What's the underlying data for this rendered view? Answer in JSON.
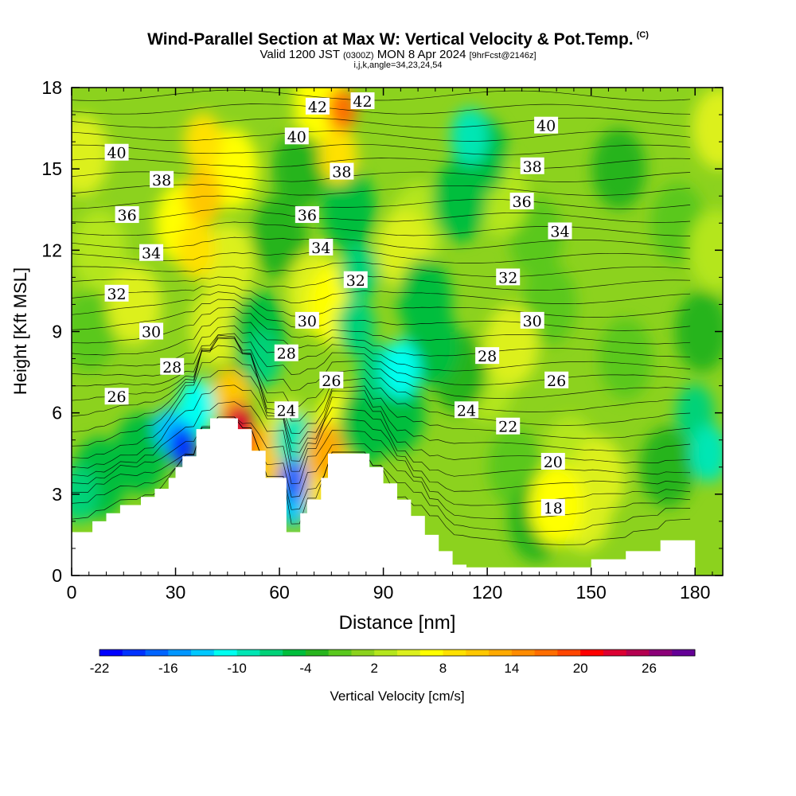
{
  "header": {
    "title": "Wind-Parallel Section at Max W: Vertical Velocity & Pot.Temp.",
    "copyright": "(C)",
    "valid_prefix": "Valid 1200 JST",
    "valid_utc": "(0300Z)",
    "valid_date": "MON 8 Apr 2024",
    "forecast": "[9hrFcst@2146z]",
    "indices": "i,j,k,angle=34,23,24,54"
  },
  "chart_data": {
    "type": "heatmap",
    "xlabel": "Distance [nm]",
    "ylabel": "Height [Kft MSL]",
    "xlim": [
      0,
      188
    ],
    "ylim": [
      0,
      18
    ],
    "xticks": [
      0,
      30,
      60,
      90,
      120,
      150,
      180
    ],
    "yticks": [
      0,
      3,
      6,
      9,
      12,
      15,
      18
    ],
    "colorbar": {
      "label": "Vertical Velocity [cm/s]",
      "min": -22,
      "max": 28,
      "step": 2,
      "tick_labels": [
        "-22",
        "-16",
        "-10",
        "-4",
        "2",
        "8",
        "14",
        "20",
        "26"
      ],
      "colors": [
        "#0000ff",
        "#0032ff",
        "#0064ff",
        "#0096ff",
        "#00c8ff",
        "#00fff0",
        "#00e6b4",
        "#00d278",
        "#00be3c",
        "#28b41e",
        "#5ac81e",
        "#8cd21e",
        "#b4e61e",
        "#dcf01e",
        "#ffff00",
        "#ffe100",
        "#ffc800",
        "#ffaa00",
        "#ff8c00",
        "#ff6e00",
        "#ff4600",
        "#ff0000",
        "#dc0032",
        "#b40050",
        "#8c0078",
        "#640096"
      ]
    },
    "terrain": {
      "x": [
        0,
        0,
        6,
        6,
        10,
        10,
        14,
        14,
        20,
        20,
        24,
        24,
        28,
        28,
        30,
        30,
        32,
        32,
        36,
        36,
        40,
        40,
        48,
        48,
        52,
        52,
        56,
        56,
        62,
        62,
        66,
        66,
        68,
        68,
        72,
        72,
        74,
        74,
        78,
        78,
        86,
        86,
        90,
        90,
        94,
        94,
        98,
        98,
        102,
        102,
        106,
        106,
        110,
        110,
        114,
        114,
        120,
        120,
        140,
        140,
        150,
        150,
        160,
        160,
        170,
        170,
        180,
        180,
        188,
        188
      ],
      "y": [
        0,
        1.6,
        1.6,
        2.0,
        2.0,
        2.3,
        2.3,
        2.6,
        2.6,
        2.9,
        2.9,
        3.2,
        3.2,
        3.6,
        3.6,
        4.0,
        4.0,
        4.4,
        4.4,
        5.4,
        5.4,
        5.8,
        5.8,
        5.4,
        5.4,
        4.6,
        4.6,
        3.6,
        3.6,
        1.6,
        1.6,
        2.3,
        2.3,
        2.8,
        2.8,
        3.6,
        3.6,
        4.5,
        4.5,
        4.5,
        4.5,
        4.0,
        4.0,
        3.4,
        3.4,
        2.8,
        2.8,
        2.2,
        2.2,
        1.5,
        1.5,
        0.9,
        0.9,
        0.4,
        0.4,
        0.3,
        0.3,
        0.3,
        0.3,
        0.3,
        0.3,
        0.6,
        0.6,
        0.9,
        0.9,
        1.3,
        1.3,
        0
      ]
    },
    "w_features": [
      {
        "x": 32,
        "y": 4.8,
        "w": -20
      },
      {
        "x": 28,
        "y": 5.4,
        "w": -14
      },
      {
        "x": 36,
        "y": 6.2,
        "w": -12
      },
      {
        "x": 20,
        "y": 4.5,
        "w": -6
      },
      {
        "x": 8,
        "y": 3.6,
        "w": -6
      },
      {
        "x": 2,
        "y": 3.0,
        "w": -8
      },
      {
        "x": 48,
        "y": 5.6,
        "w": 22
      },
      {
        "x": 50,
        "y": 5.0,
        "w": 16
      },
      {
        "x": 46,
        "y": 6.6,
        "w": 10
      },
      {
        "x": 57,
        "y": 4.4,
        "w": 10
      },
      {
        "x": 62,
        "y": 5.0,
        "w": 4
      },
      {
        "x": 64,
        "y": 3.5,
        "w": -18
      },
      {
        "x": 64,
        "y": 2.6,
        "w": -14
      },
      {
        "x": 64,
        "y": 5.0,
        "w": -10
      },
      {
        "x": 73,
        "y": 4.6,
        "w": 12
      },
      {
        "x": 70,
        "y": 3.4,
        "w": 8
      },
      {
        "x": 78,
        "y": 5.4,
        "w": 6
      },
      {
        "x": 85,
        "y": 5.6,
        "w": -6
      },
      {
        "x": 88,
        "y": 7.5,
        "w": -8
      },
      {
        "x": 95,
        "y": 7.6,
        "w": -12
      },
      {
        "x": 94,
        "y": 6.0,
        "w": -6
      },
      {
        "x": 82,
        "y": 9.2,
        "w": -8
      },
      {
        "x": 83,
        "y": 11.2,
        "w": -8
      },
      {
        "x": 80,
        "y": 13.5,
        "w": -6
      },
      {
        "x": 76,
        "y": 10.0,
        "w": 6
      },
      {
        "x": 70,
        "y": 10.5,
        "w": 4
      },
      {
        "x": 54,
        "y": 9.0,
        "w": -6
      },
      {
        "x": 55,
        "y": 8.0,
        "w": -8
      },
      {
        "x": 48,
        "y": 8.0,
        "w": -4
      },
      {
        "x": 36,
        "y": 12.0,
        "w": 8
      },
      {
        "x": 38,
        "y": 14.0,
        "w": 10
      },
      {
        "x": 38,
        "y": 16.0,
        "w": 8
      },
      {
        "x": 32,
        "y": 13.0,
        "w": 6
      },
      {
        "x": 46,
        "y": 15.0,
        "w": 6
      },
      {
        "x": 45,
        "y": 11.5,
        "w": 5
      },
      {
        "x": 78,
        "y": 17.2,
        "w": 16
      },
      {
        "x": 77,
        "y": 15.5,
        "w": 8
      },
      {
        "x": 72,
        "y": 17.5,
        "w": 6
      },
      {
        "x": 70,
        "y": 15.8,
        "w": 4
      },
      {
        "x": 66,
        "y": 15.0,
        "w": -4
      },
      {
        "x": 96,
        "y": 12.0,
        "w": 4
      },
      {
        "x": 100,
        "y": 13.0,
        "w": 3
      },
      {
        "x": 115,
        "y": 16.2,
        "w": -10
      },
      {
        "x": 112,
        "y": 13.8,
        "w": -6
      },
      {
        "x": 118,
        "y": 15.5,
        "w": -6
      },
      {
        "x": 104,
        "y": 8.5,
        "w": -6
      },
      {
        "x": 112,
        "y": 7.5,
        "w": -4
      },
      {
        "x": 102,
        "y": 10.2,
        "w": -5
      },
      {
        "x": 124,
        "y": 14.0,
        "w": 3
      },
      {
        "x": 134,
        "y": 12.5,
        "w": -2
      },
      {
        "x": 127,
        "y": 8.5,
        "w": 4
      },
      {
        "x": 120,
        "y": 7.2,
        "w": 3
      },
      {
        "x": 140,
        "y": 2.6,
        "w": 6
      },
      {
        "x": 148,
        "y": 2.4,
        "w": 5
      },
      {
        "x": 152,
        "y": 3.6,
        "w": 4
      },
      {
        "x": 144,
        "y": 4.4,
        "w": 3
      },
      {
        "x": 134,
        "y": 2.0,
        "w": -4
      },
      {
        "x": 128,
        "y": 4.0,
        "w": -2
      },
      {
        "x": 158,
        "y": 15.0,
        "w": -4
      },
      {
        "x": 175,
        "y": 13.0,
        "w": -2
      },
      {
        "x": 182,
        "y": 9.0,
        "w": -4
      },
      {
        "x": 180,
        "y": 6.0,
        "w": -8
      },
      {
        "x": 184,
        "y": 4.5,
        "w": -10
      },
      {
        "x": 172,
        "y": 4.0,
        "w": -4
      },
      {
        "x": 186,
        "y": 12.0,
        "w": 2
      },
      {
        "x": 187,
        "y": 16.5,
        "w": 4
      },
      {
        "x": 18,
        "y": 10.0,
        "w": 4
      },
      {
        "x": 8,
        "y": 12.0,
        "w": 3
      },
      {
        "x": 3,
        "y": 15.5,
        "w": 4
      },
      {
        "x": 5,
        "y": 9.0,
        "w": -2
      },
      {
        "x": 42,
        "y": 9.2,
        "w": 4
      },
      {
        "x": 60,
        "y": 12.5,
        "w": -3
      },
      {
        "x": 138,
        "y": 10.0,
        "w": -2
      },
      {
        "x": 160,
        "y": 8.0,
        "w": -2
      }
    ],
    "theta_labels": [
      {
        "x": 13,
        "y": 6.6,
        "text": "26"
      },
      {
        "x": 29,
        "y": 7.7,
        "text": "28"
      },
      {
        "x": 23,
        "y": 9.0,
        "text": "30"
      },
      {
        "x": 13,
        "y": 10.4,
        "text": "32"
      },
      {
        "x": 23,
        "y": 11.9,
        "text": "34"
      },
      {
        "x": 16,
        "y": 13.3,
        "text": "36"
      },
      {
        "x": 26,
        "y": 14.6,
        "text": "38"
      },
      {
        "x": 13,
        "y": 15.6,
        "text": "40"
      },
      {
        "x": 62,
        "y": 6.1,
        "text": "24"
      },
      {
        "x": 62,
        "y": 8.2,
        "text": "28"
      },
      {
        "x": 68,
        "y": 9.4,
        "text": "30"
      },
      {
        "x": 75,
        "y": 7.2,
        "text": "26"
      },
      {
        "x": 82,
        "y": 10.9,
        "text": "32"
      },
      {
        "x": 72,
        "y": 12.1,
        "text": "34"
      },
      {
        "x": 68,
        "y": 13.3,
        "text": "36"
      },
      {
        "x": 78,
        "y": 14.9,
        "text": "38"
      },
      {
        "x": 65,
        "y": 16.2,
        "text": "40"
      },
      {
        "x": 71,
        "y": 17.3,
        "text": "42"
      },
      {
        "x": 84,
        "y": 17.5,
        "text": "42"
      },
      {
        "x": 114,
        "y": 6.1,
        "text": "24"
      },
      {
        "x": 120,
        "y": 8.1,
        "text": "28"
      },
      {
        "x": 126,
        "y": 5.5,
        "text": "22"
      },
      {
        "x": 139,
        "y": 4.2,
        "text": "20"
      },
      {
        "x": 139,
        "y": 2.5,
        "text": "18"
      },
      {
        "x": 140,
        "y": 7.2,
        "text": "26"
      },
      {
        "x": 133,
        "y": 9.4,
        "text": "30"
      },
      {
        "x": 126,
        "y": 11.0,
        "text": "32"
      },
      {
        "x": 141,
        "y": 12.7,
        "text": "34"
      },
      {
        "x": 130,
        "y": 13.8,
        "text": "36"
      },
      {
        "x": 133,
        "y": 15.1,
        "text": "38"
      },
      {
        "x": 137,
        "y": 16.6,
        "text": "40"
      }
    ]
  }
}
